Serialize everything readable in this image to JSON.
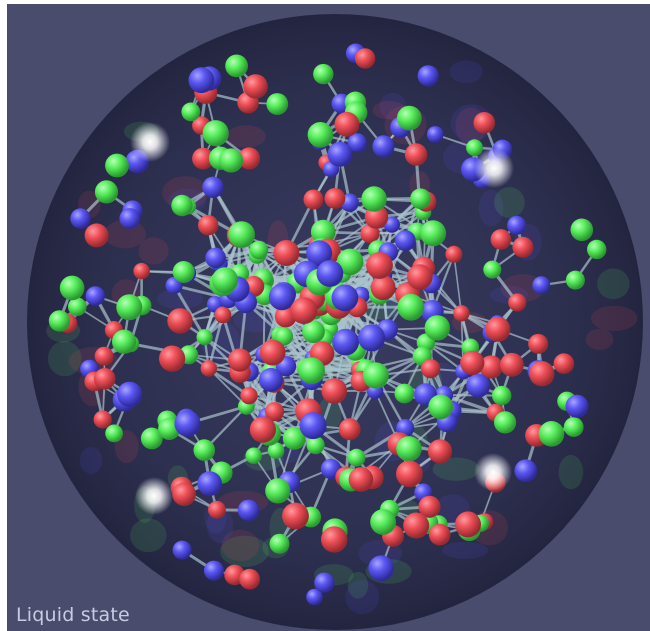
{
  "scene": {
    "state_label": "Liquid state",
    "colors": {
      "background": "#4a4c6e",
      "sphere": "#262842",
      "bond": "#a9c3cc",
      "atom_red": "#ee4f57",
      "atom_green": "#59ee5d",
      "atom_blue": "#5b57f2",
      "highlight": "#ffffff"
    }
  }
}
